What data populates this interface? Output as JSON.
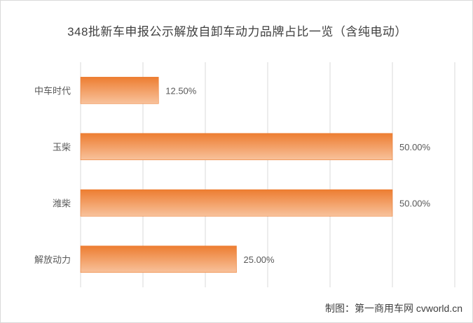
{
  "chart_data": {
    "type": "bar",
    "orientation": "horizontal",
    "title": "348批新车申报公示解放自卸车动力品牌占比一览（含纯电动）",
    "categories": [
      "中车时代",
      "玉柴",
      "潍柴",
      "解放动力"
    ],
    "values": [
      12.5,
      50.0,
      50.0,
      25.0
    ],
    "value_labels": [
      "12.50%",
      "50.00%",
      "50.00%",
      "25.00%"
    ],
    "xlim": [
      0,
      60
    ],
    "grid": true,
    "legend": "none",
    "bar_color_light": "#f8c29c",
    "bar_color_dark": "#ed7d31"
  },
  "credit": "制图：第一商用车网 cvworld.cn"
}
